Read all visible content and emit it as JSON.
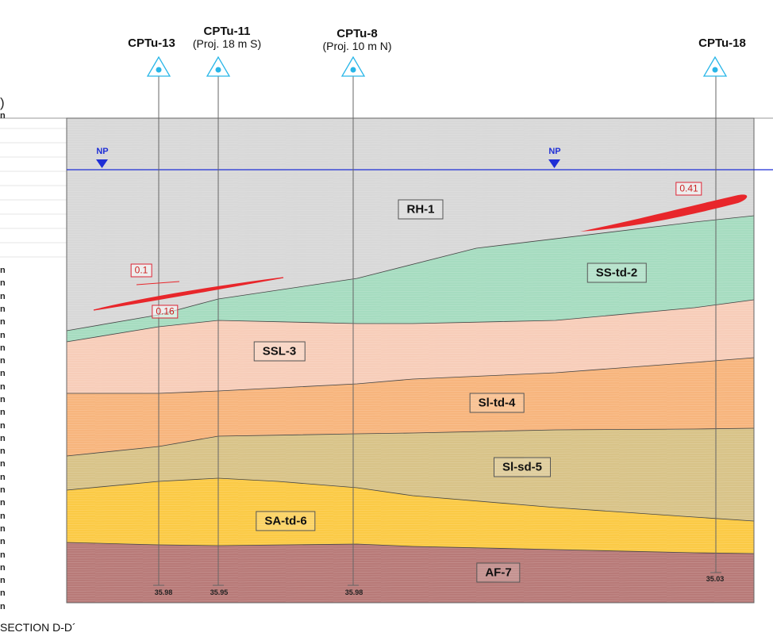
{
  "section": {
    "title": "SECTION D-D´"
  },
  "cpts": [
    {
      "id": "cpt13",
      "name": "CPTu-13",
      "note": "",
      "bottom": "35.98"
    },
    {
      "id": "cpt11",
      "name": "CPTu-11",
      "note": "(Proj. 18 m S)",
      "bottom": "35.95"
    },
    {
      "id": "cpt8",
      "name": "CPTu-8",
      "note": "(Proj. 10 m N)",
      "bottom": "35.98"
    },
    {
      "id": "cpt18",
      "name": "CPTu-18",
      "note": "",
      "bottom": "35.03"
    }
  ],
  "layers": [
    "RH-1",
    "SS-td-2",
    "SSL-3",
    "Sl-td-4",
    "Sl-sd-5",
    "SA-td-6",
    "AF-7"
  ],
  "water_table": {
    "label": "NP"
  },
  "lenses": [
    {
      "id": "lens1",
      "values": [
        "0.1",
        "0.16"
      ]
    },
    {
      "id": "lens2",
      "values": [
        "0.41"
      ]
    }
  ],
  "left_axis_fragment": {
    "paren": ")",
    "unit_glyph": "n"
  },
  "colors": {
    "RH-1": "#d8d8d8",
    "SS-td-2": "#a6dcc0",
    "SSL-3": "#f7cdb9",
    "Sl-td-4": "#f7b57d",
    "Sl-sd-5": "#d8c388",
    "SA-td-6": "#fbca45",
    "AF-7": "#b87a78",
    "lens": "#e8262b",
    "water": "#1f2fd6",
    "marker": "#29b6e8"
  }
}
